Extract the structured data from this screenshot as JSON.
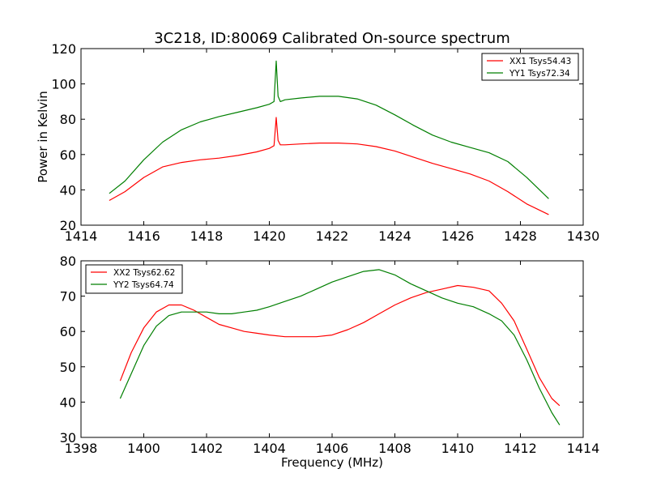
{
  "figure": {
    "title": "3C218, ID:80069 Calibrated On-source spectrum",
    "ylabel": "Power in Kelvin",
    "xlabel": "Frequency (MHz)",
    "colors": {
      "XX": "#ff0000",
      "YY": "#007f00"
    }
  },
  "chart_data": [
    {
      "type": "line",
      "xlim": [
        1414,
        1430
      ],
      "ylim": [
        20,
        120
      ],
      "xticks": [
        1414,
        1416,
        1418,
        1420,
        1422,
        1424,
        1426,
        1428,
        1430
      ],
      "yticks": [
        20,
        40,
        60,
        80,
        100,
        120
      ],
      "legend_position": "top-right",
      "series": [
        {
          "name": "XX1 Tsys54.43",
          "color": "#ff0000",
          "x": [
            1414.9,
            1415.4,
            1416.0,
            1416.6,
            1417.2,
            1417.8,
            1418.4,
            1419.0,
            1419.6,
            1420.0,
            1420.15,
            1420.22,
            1420.28,
            1420.35,
            1420.5,
            1421.0,
            1421.6,
            1422.2,
            1422.8,
            1423.4,
            1424.0,
            1424.6,
            1425.2,
            1425.8,
            1426.4,
            1427.0,
            1427.6,
            1428.2,
            1428.9
          ],
          "y": [
            34,
            39,
            47,
            53,
            55.5,
            57,
            58,
            59.5,
            61.5,
            63.5,
            65,
            81,
            68,
            65.5,
            65.5,
            66,
            66.5,
            66.5,
            66,
            64.5,
            62,
            58.5,
            55,
            52,
            49,
            45,
            39,
            32,
            26
          ]
        },
        {
          "name": "YY1 Tsys72.34",
          "color": "#007f00",
          "x": [
            1414.9,
            1415.4,
            1416.0,
            1416.6,
            1417.2,
            1417.8,
            1418.4,
            1419.0,
            1419.6,
            1420.0,
            1420.15,
            1420.22,
            1420.28,
            1420.35,
            1420.5,
            1421.0,
            1421.6,
            1422.2,
            1422.8,
            1423.4,
            1424.0,
            1424.6,
            1425.2,
            1425.8,
            1426.4,
            1427.0,
            1427.6,
            1428.2,
            1428.9
          ],
          "y": [
            38,
            45,
            57,
            67,
            74,
            78.5,
            81.5,
            84,
            86.5,
            88.5,
            90,
            113,
            93,
            90,
            91,
            92,
            93,
            93,
            91.5,
            88,
            82.5,
            76.5,
            71,
            67,
            64,
            61,
            56,
            47,
            35
          ]
        }
      ]
    },
    {
      "type": "line",
      "xlim": [
        1398,
        1414
      ],
      "ylim": [
        30,
        80
      ],
      "xticks": [
        1398,
        1400,
        1402,
        1404,
        1406,
        1408,
        1410,
        1412,
        1414
      ],
      "yticks": [
        30,
        40,
        50,
        60,
        70,
        80
      ],
      "legend_position": "top-left",
      "series": [
        {
          "name": "XX2 Tsys62.62",
          "color": "#ff0000",
          "x": [
            1399.25,
            1399.6,
            1400.0,
            1400.4,
            1400.8,
            1401.2,
            1401.6,
            1402.0,
            1402.4,
            1402.8,
            1403.2,
            1403.6,
            1404.0,
            1404.5,
            1405.0,
            1405.5,
            1406.0,
            1406.5,
            1407.0,
            1407.5,
            1408.0,
            1408.5,
            1409.0,
            1409.5,
            1410.0,
            1410.5,
            1411.0,
            1411.4,
            1411.8,
            1412.2,
            1412.6,
            1413.0,
            1413.25
          ],
          "y": [
            46,
            54,
            61,
            65.5,
            67.5,
            67.5,
            66,
            64,
            62,
            61,
            60,
            59.5,
            59,
            58.5,
            58.5,
            58.5,
            59,
            60.5,
            62.5,
            65,
            67.5,
            69.5,
            71,
            72,
            73,
            72.5,
            71.5,
            68,
            63,
            55,
            47,
            41,
            39
          ]
        },
        {
          "name": "YY2 Tsys64.74",
          "color": "#007f00",
          "x": [
            1399.25,
            1399.6,
            1400.0,
            1400.4,
            1400.8,
            1401.2,
            1401.6,
            1402.0,
            1402.4,
            1402.8,
            1403.2,
            1403.6,
            1404.0,
            1404.5,
            1405.0,
            1405.5,
            1406.0,
            1406.5,
            1407.0,
            1407.5,
            1408.0,
            1408.5,
            1409.0,
            1409.5,
            1410.0,
            1410.5,
            1411.0,
            1411.4,
            1411.8,
            1412.2,
            1412.6,
            1413.0,
            1413.25
          ],
          "y": [
            41,
            48,
            56,
            61.5,
            64.5,
            65.5,
            65.5,
            65.5,
            65,
            65,
            65.5,
            66,
            67,
            68.5,
            70,
            72,
            74,
            75.5,
            77,
            77.5,
            76,
            73.5,
            71.5,
            69.5,
            68,
            67,
            65,
            63,
            59,
            52,
            44,
            37,
            33.5
          ]
        }
      ]
    }
  ]
}
